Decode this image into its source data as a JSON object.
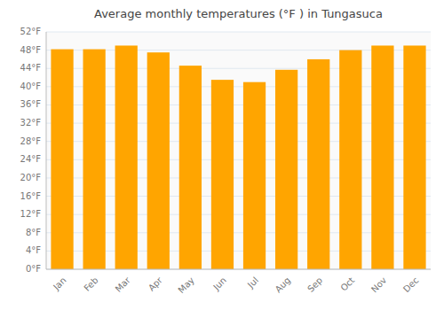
{
  "chart_data": {
    "type": "bar",
    "title": "Average monthly temperatures (°F ) in Tungasuca",
    "categories": [
      "Jan",
      "Feb",
      "Mar",
      "Apr",
      "May",
      "Jun",
      "Jul",
      "Aug",
      "Sep",
      "Oct",
      "Nov",
      "Dec"
    ],
    "values": [
      48.2,
      48.2,
      49.0,
      47.5,
      44.6,
      41.5,
      41.0,
      43.7,
      46.0,
      48.0,
      49.0,
      49.0
    ],
    "color": "#FFA500",
    "ylim": [
      0,
      52
    ],
    "yticks": [
      {
        "value": 0,
        "label": "0°F"
      },
      {
        "value": 4,
        "label": "4°F"
      },
      {
        "value": 8,
        "label": "8°F"
      },
      {
        "value": 12,
        "label": "12°F"
      },
      {
        "value": 16,
        "label": "16°F"
      },
      {
        "value": 20,
        "label": "20°F"
      },
      {
        "value": 24,
        "label": "24°F"
      },
      {
        "value": 28,
        "label": "28°F"
      },
      {
        "value": 32,
        "label": "32°F"
      },
      {
        "value": 36,
        "label": "36°F"
      },
      {
        "value": 40,
        "label": "40°F"
      },
      {
        "value": 44,
        "label": "44°F"
      },
      {
        "value": 48,
        "label": "48°F"
      },
      {
        "value": 52,
        "label": "52°F"
      }
    ],
    "grid": true
  }
}
